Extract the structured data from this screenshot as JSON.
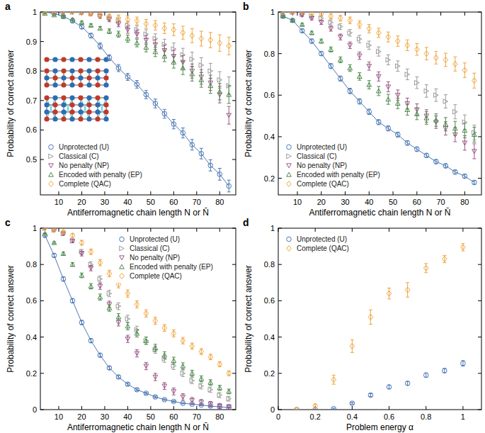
{
  "chart_data": [
    {
      "label": "a",
      "type": "scatter",
      "xlabel": "Antiferromagnetic chain length N or N̄",
      "ylabel": "Probability of correct answer",
      "legend": "bottom-left",
      "x": [
        4,
        8,
        12,
        16,
        20,
        24,
        28,
        32,
        36,
        40,
        44,
        48,
        52,
        56,
        60,
        64,
        68,
        72,
        76,
        80,
        84
      ],
      "xlim": [
        2,
        87
      ],
      "xticks": [
        10,
        20,
        30,
        40,
        50,
        60,
        70,
        80
      ],
      "ylim": [
        0.38,
        1
      ],
      "yticks": [
        0.5,
        0.6,
        0.7,
        0.8,
        0.9,
        1
      ],
      "series": [
        {
          "name": "Unprotected (U)",
          "color": "#4a78b5",
          "marker": "circle",
          "line_style": "solid",
          "values": [
            1.0,
            0.995,
            0.985,
            0.97,
            0.95,
            0.92,
            0.885,
            0.845,
            0.81,
            0.78,
            0.755,
            0.72,
            0.69,
            0.655,
            0.62,
            0.59,
            0.55,
            0.52,
            0.48,
            0.45,
            0.41
          ],
          "errors": [
            0.003,
            0.004,
            0.005,
            0.006,
            0.007,
            0.008,
            0.01,
            0.01,
            0.012,
            0.012,
            0.013,
            0.014,
            0.015,
            0.015,
            0.016,
            0.017,
            0.018,
            0.018,
            0.019,
            0.02,
            0.02
          ]
        },
        {
          "name": "Classical (C)",
          "color": "#9a9a9a",
          "marker": "triangle-right",
          "values": [
            1,
            1,
            1,
            1,
            0.998,
            0.995,
            0.99,
            0.98,
            0.97,
            0.955,
            0.94,
            0.925,
            0.91,
            0.89,
            0.875,
            0.855,
            0.84,
            0.82,
            0.8,
            0.77,
            0.75
          ],
          "errors": [
            0.001,
            0.001,
            0.002,
            0.003,
            0.004,
            0.005,
            0.006,
            0.008,
            0.01,
            0.012,
            0.013,
            0.015,
            0.016,
            0.018,
            0.02,
            0.022,
            0.024,
            0.025,
            0.026,
            0.028,
            0.03
          ]
        },
        {
          "name": "No penalty (NP)",
          "color": "#9c5584",
          "marker": "triangle-down",
          "values": [
            1,
            1,
            1,
            1,
            0.997,
            0.993,
            0.985,
            0.975,
            0.96,
            0.94,
            0.925,
            0.905,
            0.89,
            0.87,
            0.85,
            0.83,
            0.8,
            0.78,
            0.76,
            0.72,
            0.65
          ],
          "errors": [
            0.001,
            0.001,
            0.002,
            0.003,
            0.004,
            0.005,
            0.006,
            0.008,
            0.01,
            0.012,
            0.013,
            0.015,
            0.016,
            0.018,
            0.02,
            0.022,
            0.024,
            0.025,
            0.026,
            0.028,
            0.03
          ]
        },
        {
          "name": "Encoded with penalty (EP)",
          "color": "#4b8a4b",
          "marker": "triangle-up",
          "values": [
            0.995,
            0.99,
            0.985,
            0.975,
            0.965,
            0.955,
            0.945,
            0.935,
            0.925,
            0.91,
            0.895,
            0.88,
            0.865,
            0.85,
            0.83,
            0.81,
            0.79,
            0.77,
            0.75,
            0.73,
            0.72
          ],
          "errors": [
            0.001,
            0.001,
            0.002,
            0.003,
            0.004,
            0.005,
            0.006,
            0.008,
            0.01,
            0.012,
            0.013,
            0.015,
            0.016,
            0.018,
            0.02,
            0.022,
            0.024,
            0.025,
            0.026,
            0.028,
            0.03
          ]
        },
        {
          "name": "Complete (QAC)",
          "color": "#f0a43a",
          "marker": "diamond",
          "values": [
            1,
            1,
            1,
            1,
            0.998,
            0.995,
            0.99,
            0.985,
            0.98,
            0.975,
            0.97,
            0.96,
            0.955,
            0.945,
            0.94,
            0.93,
            0.92,
            0.91,
            0.905,
            0.895,
            0.885
          ],
          "errors": [
            0.001,
            0.001,
            0.002,
            0.003,
            0.004,
            0.005,
            0.006,
            0.008,
            0.01,
            0.012,
            0.013,
            0.015,
            0.016,
            0.018,
            0.02,
            0.022,
            0.024,
            0.025,
            0.026,
            0.028,
            0.03
          ]
        }
      ]
    },
    {
      "label": "b",
      "type": "scatter",
      "xlabel": "Antiferromagnetic chain length N or N̄",
      "ylabel": "Probability of correct answer",
      "legend": "bottom-left",
      "x": [
        4,
        8,
        12,
        16,
        20,
        24,
        28,
        32,
        36,
        40,
        44,
        48,
        52,
        56,
        60,
        64,
        68,
        72,
        76,
        80,
        84
      ],
      "xlim": [
        2,
        87
      ],
      "xticks": [
        10,
        20,
        30,
        40,
        50,
        60,
        70,
        80
      ],
      "ylim": [
        0.12,
        1
      ],
      "yticks": [
        0.2,
        0.4,
        0.6,
        0.8,
        1
      ],
      "series": [
        {
          "name": "Unprotected (U)",
          "color": "#4a78b5",
          "marker": "circle",
          "line_style": "solid",
          "values": [
            0.98,
            0.96,
            0.91,
            0.86,
            0.8,
            0.74,
            0.68,
            0.62,
            0.57,
            0.52,
            0.47,
            0.44,
            0.41,
            0.37,
            0.34,
            0.31,
            0.28,
            0.26,
            0.23,
            0.21,
            0.18
          ],
          "errors": [
            0.005,
            0.006,
            0.008,
            0.01,
            0.01,
            0.012,
            0.012,
            0.013,
            0.013,
            0.013,
            0.012,
            0.012,
            0.012,
            0.011,
            0.011,
            0.01,
            0.01,
            0.01,
            0.01,
            0.009,
            0.009
          ]
        },
        {
          "name": "Classical (C)",
          "color": "#9a9a9a",
          "marker": "triangle-right",
          "values": [
            1,
            1,
            0.99,
            0.98,
            0.97,
            0.95,
            0.93,
            0.9,
            0.87,
            0.84,
            0.81,
            0.77,
            0.74,
            0.7,
            0.66,
            0.62,
            0.6,
            0.57,
            0.52,
            0.47,
            0.42
          ],
          "errors": [
            0.003,
            0.004,
            0.006,
            0.008,
            0.01,
            0.012,
            0.014,
            0.016,
            0.018,
            0.02,
            0.022,
            0.024,
            0.025,
            0.026,
            0.028,
            0.03,
            0.03,
            0.032,
            0.034,
            0.035,
            0.036
          ]
        },
        {
          "name": "No penalty (NP)",
          "color": "#9c5584",
          "marker": "triangle-down",
          "values": [
            1,
            0.995,
            0.985,
            0.97,
            0.95,
            0.92,
            0.88,
            0.84,
            0.79,
            0.74,
            0.69,
            0.64,
            0.6,
            0.56,
            0.53,
            0.5,
            0.47,
            0.44,
            0.41,
            0.37,
            0.33
          ],
          "errors": [
            0.003,
            0.004,
            0.006,
            0.008,
            0.01,
            0.012,
            0.014,
            0.016,
            0.018,
            0.02,
            0.022,
            0.024,
            0.025,
            0.026,
            0.028,
            0.03,
            0.03,
            0.032,
            0.034,
            0.035,
            0.036
          ]
        },
        {
          "name": "Encoded with penalty (EP)",
          "color": "#4b8a4b",
          "marker": "triangle-up",
          "values": [
            0.98,
            0.96,
            0.94,
            0.9,
            0.86,
            0.82,
            0.77,
            0.73,
            0.69,
            0.65,
            0.62,
            0.58,
            0.56,
            0.53,
            0.51,
            0.49,
            0.48,
            0.46,
            0.44,
            0.43,
            0.41
          ],
          "errors": [
            0.003,
            0.004,
            0.006,
            0.008,
            0.01,
            0.012,
            0.014,
            0.016,
            0.018,
            0.02,
            0.022,
            0.024,
            0.025,
            0.026,
            0.028,
            0.03,
            0.03,
            0.032,
            0.034,
            0.035,
            0.036
          ]
        },
        {
          "name": "Complete (QAC)",
          "color": "#f0a43a",
          "marker": "diamond",
          "values": [
            1,
            1,
            1,
            0.995,
            0.99,
            0.98,
            0.97,
            0.96,
            0.94,
            0.92,
            0.9,
            0.88,
            0.86,
            0.84,
            0.82,
            0.8,
            0.78,
            0.77,
            0.75,
            0.72,
            0.67
          ],
          "errors": [
            0.003,
            0.004,
            0.006,
            0.008,
            0.01,
            0.012,
            0.014,
            0.016,
            0.018,
            0.02,
            0.022,
            0.024,
            0.025,
            0.026,
            0.028,
            0.03,
            0.03,
            0.032,
            0.034,
            0.035,
            0.036
          ]
        }
      ]
    },
    {
      "label": "c",
      "type": "scatter",
      "xlabel": "Antiferromagnetic chain length N or N̄",
      "ylabel": "Probability of correct answer",
      "legend": "top-right",
      "x": [
        4,
        8,
        12,
        16,
        20,
        24,
        28,
        32,
        36,
        40,
        44,
        48,
        52,
        56,
        60,
        64,
        68,
        72,
        76,
        80,
        84
      ],
      "xlim": [
        2,
        87
      ],
      "xticks": [
        10,
        20,
        30,
        40,
        50,
        60,
        70,
        80
      ],
      "ylim": [
        0,
        1
      ],
      "yticks": [
        0,
        0.2,
        0.4,
        0.6,
        0.8,
        1
      ],
      "series": [
        {
          "name": "Unprotected (U)",
          "color": "#4a78b5",
          "marker": "circle",
          "line_style": "solid",
          "values": [
            0.96,
            0.85,
            0.72,
            0.6,
            0.48,
            0.38,
            0.3,
            0.23,
            0.18,
            0.14,
            0.11,
            0.09,
            0.07,
            0.055,
            0.045,
            0.035,
            0.03,
            0.025,
            0.02,
            0.015,
            0.012
          ],
          "errors": [
            0.008,
            0.01,
            0.012,
            0.012,
            0.012,
            0.011,
            0.01,
            0.009,
            0.008,
            0.007,
            0.006,
            0.005,
            0.005,
            0.004,
            0.004,
            0.003,
            0.003,
            0.003,
            0.002,
            0.002,
            0.002
          ]
        },
        {
          "name": "Classical (C)",
          "color": "#9a9a9a",
          "marker": "triangle-right",
          "values": [
            1,
            0.99,
            0.97,
            0.93,
            0.87,
            0.8,
            0.72,
            0.64,
            0.57,
            0.5,
            0.44,
            0.38,
            0.33,
            0.28,
            0.24,
            0.2,
            0.16,
            0.13,
            0.11,
            0.08,
            0.06
          ],
          "errors": [
            0.003,
            0.005,
            0.008,
            0.01,
            0.013,
            0.015,
            0.017,
            0.018,
            0.019,
            0.02,
            0.02,
            0.02,
            0.02,
            0.019,
            0.019,
            0.018,
            0.017,
            0.016,
            0.015,
            0.014,
            0.013
          ]
        },
        {
          "name": "No penalty (NP)",
          "color": "#9c5584",
          "marker": "triangle-down",
          "values": [
            1,
            0.99,
            0.97,
            0.93,
            0.86,
            0.78,
            0.68,
            0.58,
            0.48,
            0.39,
            0.31,
            0.24,
            0.18,
            0.13,
            0.1,
            0.07,
            0.05,
            0.04,
            0.03,
            0.02,
            0.015
          ],
          "errors": [
            0.003,
            0.005,
            0.008,
            0.01,
            0.013,
            0.015,
            0.017,
            0.018,
            0.019,
            0.02,
            0.02,
            0.02,
            0.02,
            0.019,
            0.019,
            0.018,
            0.017,
            0.016,
            0.015,
            0.014,
            0.013
          ]
        },
        {
          "name": "Encoded with penalty (EP)",
          "color": "#4b8a4b",
          "marker": "triangle-up",
          "values": [
            0.97,
            0.92,
            0.86,
            0.8,
            0.74,
            0.68,
            0.62,
            0.56,
            0.51,
            0.46,
            0.42,
            0.38,
            0.34,
            0.3,
            0.27,
            0.24,
            0.2,
            0.17,
            0.15,
            0.12,
            0.1
          ],
          "errors": [
            0.003,
            0.005,
            0.008,
            0.01,
            0.013,
            0.015,
            0.017,
            0.018,
            0.019,
            0.02,
            0.02,
            0.02,
            0.02,
            0.019,
            0.019,
            0.018,
            0.017,
            0.016,
            0.015,
            0.014,
            0.013
          ]
        },
        {
          "name": "Complete (QAC)",
          "color": "#f0a43a",
          "marker": "diamond",
          "values": [
            1,
            0.99,
            0.98,
            0.96,
            0.92,
            0.87,
            0.81,
            0.75,
            0.69,
            0.64,
            0.58,
            0.53,
            0.49,
            0.45,
            0.42,
            0.38,
            0.35,
            0.32,
            0.29,
            0.25,
            0.2
          ],
          "errors": [
            0.003,
            0.005,
            0.008,
            0.01,
            0.013,
            0.015,
            0.017,
            0.018,
            0.019,
            0.02,
            0.02,
            0.02,
            0.02,
            0.019,
            0.019,
            0.018,
            0.017,
            0.016,
            0.015,
            0.014,
            0.013
          ]
        }
      ]
    },
    {
      "label": "d",
      "type": "scatter",
      "xlabel": "Problem energy α",
      "ylabel": "Probability of correct answer",
      "legend": "top-left",
      "x": [
        0.1,
        0.2,
        0.3,
        0.4,
        0.5,
        0.6,
        0.7,
        0.8,
        0.9,
        1.0
      ],
      "xlim": [
        0,
        1.1
      ],
      "xticks": [
        0,
        0.2,
        0.4,
        0.6,
        0.8,
        1
      ],
      "ylim": [
        0,
        1
      ],
      "yticks": [
        0,
        0.2,
        0.4,
        0.6,
        0.8,
        1
      ],
      "series": [
        {
          "name": "Unprotected (U)",
          "color": "#4a78b5",
          "marker": "circle",
          "values": [
            0,
            0,
            0.005,
            0.035,
            0.08,
            0.125,
            0.145,
            0.19,
            0.215,
            0.255
          ],
          "errors": [
            0,
            0,
            0.003,
            0.005,
            0.008,
            0.01,
            0.01,
            0.012,
            0.012,
            0.015
          ]
        },
        {
          "name": "Complete (QAC)",
          "color": "#f0a43a",
          "marker": "diamond",
          "values": [
            0,
            0.02,
            0.165,
            0.35,
            0.51,
            0.64,
            0.66,
            0.78,
            0.83,
            0.895
          ],
          "errors": [
            0.003,
            0.01,
            0.025,
            0.035,
            0.04,
            0.03,
            0.04,
            0.025,
            0.02,
            0.02
          ]
        }
      ]
    }
  ]
}
